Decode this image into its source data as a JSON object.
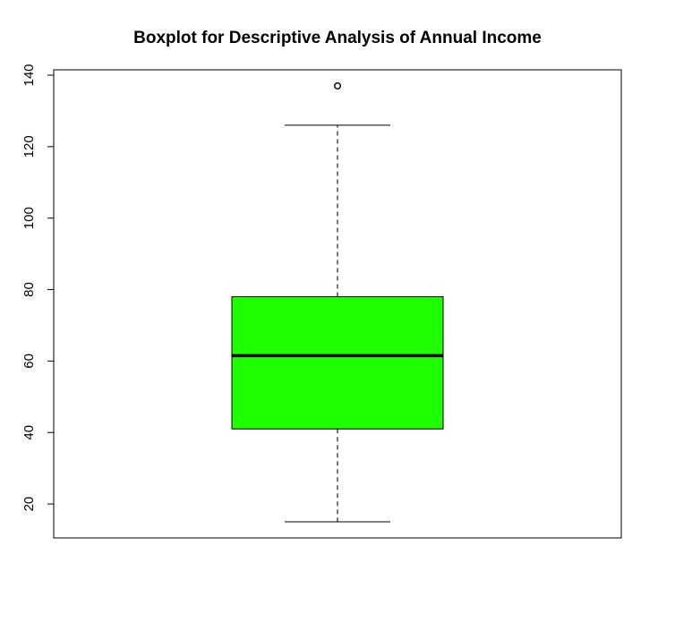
{
  "chart_data": {
    "type": "boxplot",
    "title": "Boxplot for Descriptive Analysis of Annual Income",
    "xlabel": "",
    "ylabel": "",
    "ylim": [
      10.5,
      141.5
    ],
    "yticks": [
      20,
      40,
      60,
      80,
      100,
      120,
      140
    ],
    "ytick_labels": [
      "20",
      "40",
      "60",
      "80",
      "100",
      "120",
      "140"
    ],
    "grid": false,
    "legend": "none",
    "box": {
      "whisker_low": 15,
      "q1": 41,
      "median": 61.5,
      "q3": 78,
      "whisker_high": 126,
      "outliers": [
        137
      ]
    },
    "colors": {
      "box_fill": "#1eff00",
      "lines": "#000000",
      "whisker_line": "#555555"
    }
  }
}
